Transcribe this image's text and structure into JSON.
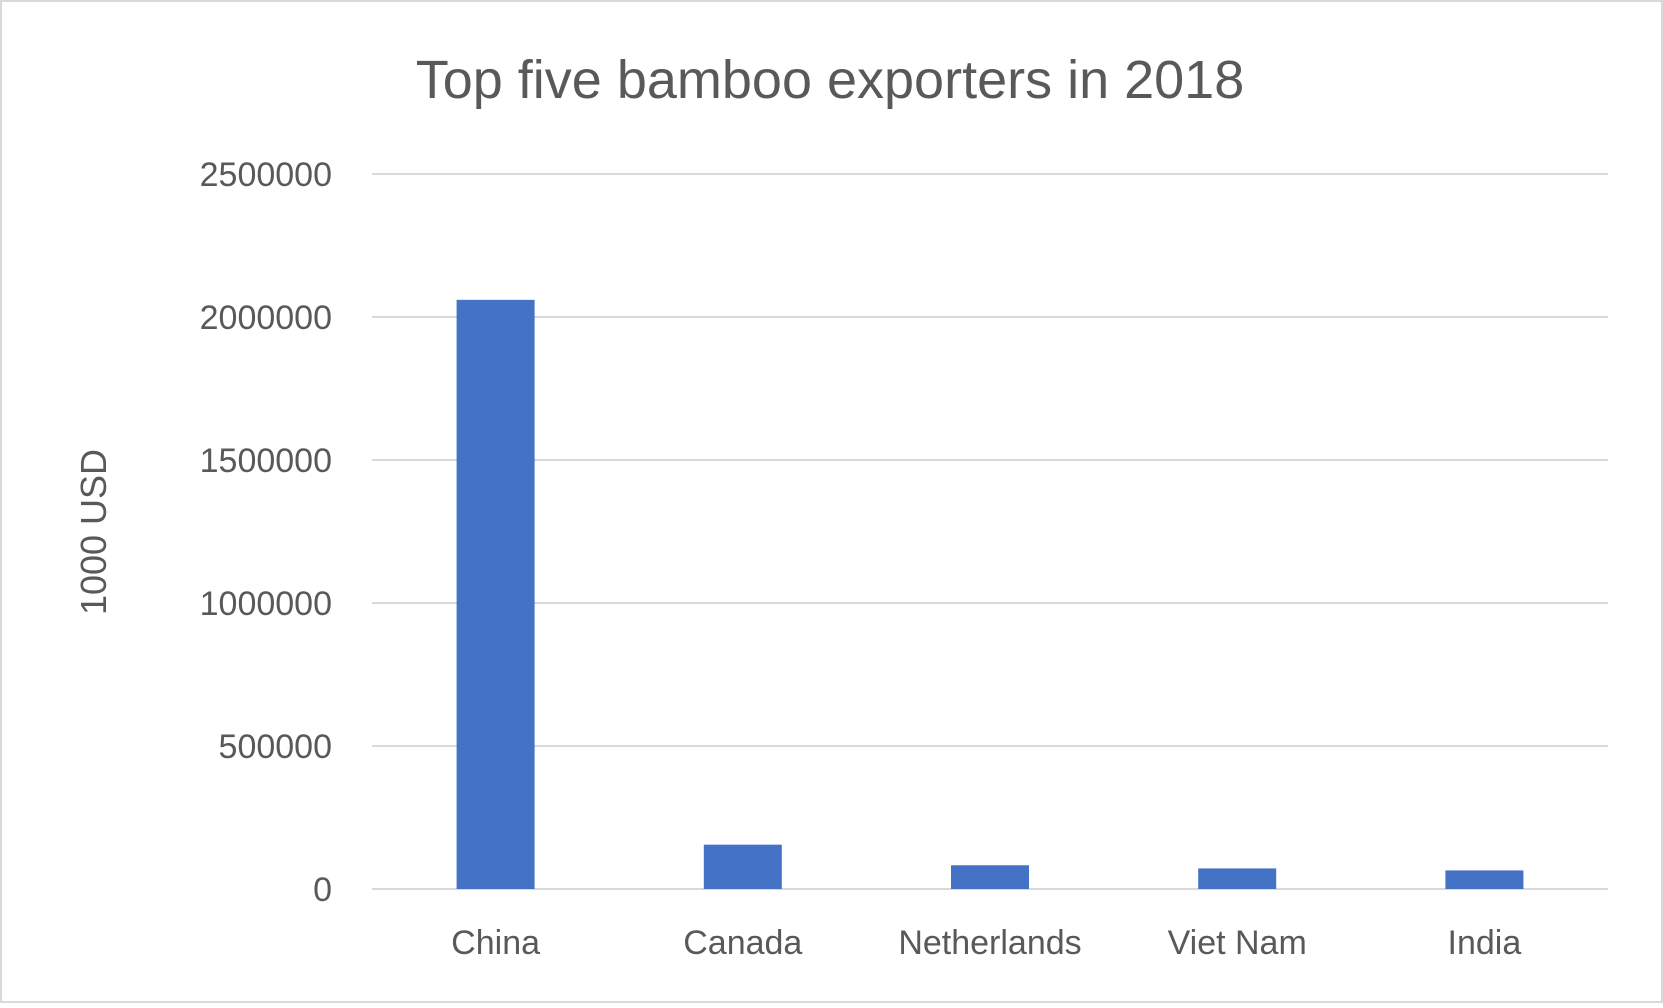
{
  "chart_data": {
    "type": "bar",
    "title": "Top five bamboo exporters in 2018",
    "xlabel": "",
    "ylabel": "1000 USD",
    "categories": [
      "China",
      "Canada",
      "Netherlands",
      "Viet Nam",
      "India"
    ],
    "values": [
      2060000,
      155000,
      83000,
      72000,
      65000
    ],
    "ylim": [
      0,
      2500000
    ],
    "yticks": [
      0,
      500000,
      1000000,
      1500000,
      2000000,
      2500000
    ],
    "ytick_labels": [
      "0",
      "500000",
      "1000000",
      "1500000",
      "2000000",
      "2500000"
    ],
    "grid": true,
    "legend": "none"
  },
  "colors": {
    "bar": "#4472C4",
    "grid": "#D9D9D9",
    "text": "#595959",
    "border": "#D9D9D9",
    "background": "#FFFFFF"
  }
}
